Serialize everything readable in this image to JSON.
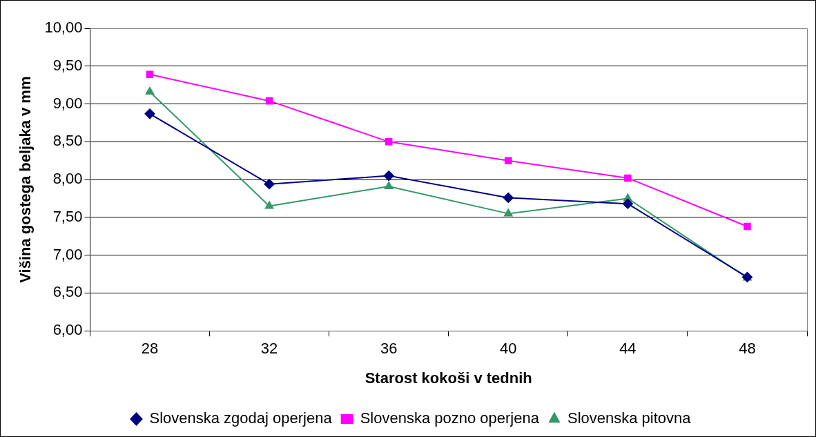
{
  "chart_data": {
    "type": "line",
    "xlabel": "Starost kokoši v tednih",
    "ylabel": "Višina gostega beljaka v mm",
    "categories": [
      "28",
      "32",
      "36",
      "40",
      "44",
      "48"
    ],
    "series": [
      {
        "name": "Slovenska zgodaj operjena",
        "color": "#000080",
        "marker": "diamond",
        "values": [
          8.87,
          7.94,
          8.05,
          7.76,
          7.68,
          6.71
        ]
      },
      {
        "name": "Slovenska pozno operjena",
        "color": "#ff00ff",
        "marker": "square",
        "values": [
          9.39,
          9.04,
          8.5,
          8.25,
          8.02,
          7.38
        ]
      },
      {
        "name": "Slovenska pitovna",
        "color": "#339966",
        "marker": "triangle",
        "values": [
          9.16,
          7.65,
          7.91,
          7.55,
          7.75,
          6.7
        ]
      }
    ],
    "ylim": [
      6,
      10
    ],
    "yticks": [
      {
        "value": 6,
        "label": "6,00"
      },
      {
        "value": 6.5,
        "label": "6,50"
      },
      {
        "value": 7,
        "label": "7,00"
      },
      {
        "value": 7.5,
        "label": "7,50"
      },
      {
        "value": 8,
        "label": "8,00"
      },
      {
        "value": 8.5,
        "label": "8,50"
      },
      {
        "value": 9,
        "label": "9,00"
      },
      {
        "value": 9.5,
        "label": "9,50"
      },
      {
        "value": 10,
        "label": "10,00"
      }
    ],
    "grid": "y",
    "legend": "bottom",
    "line_style": "solid"
  }
}
